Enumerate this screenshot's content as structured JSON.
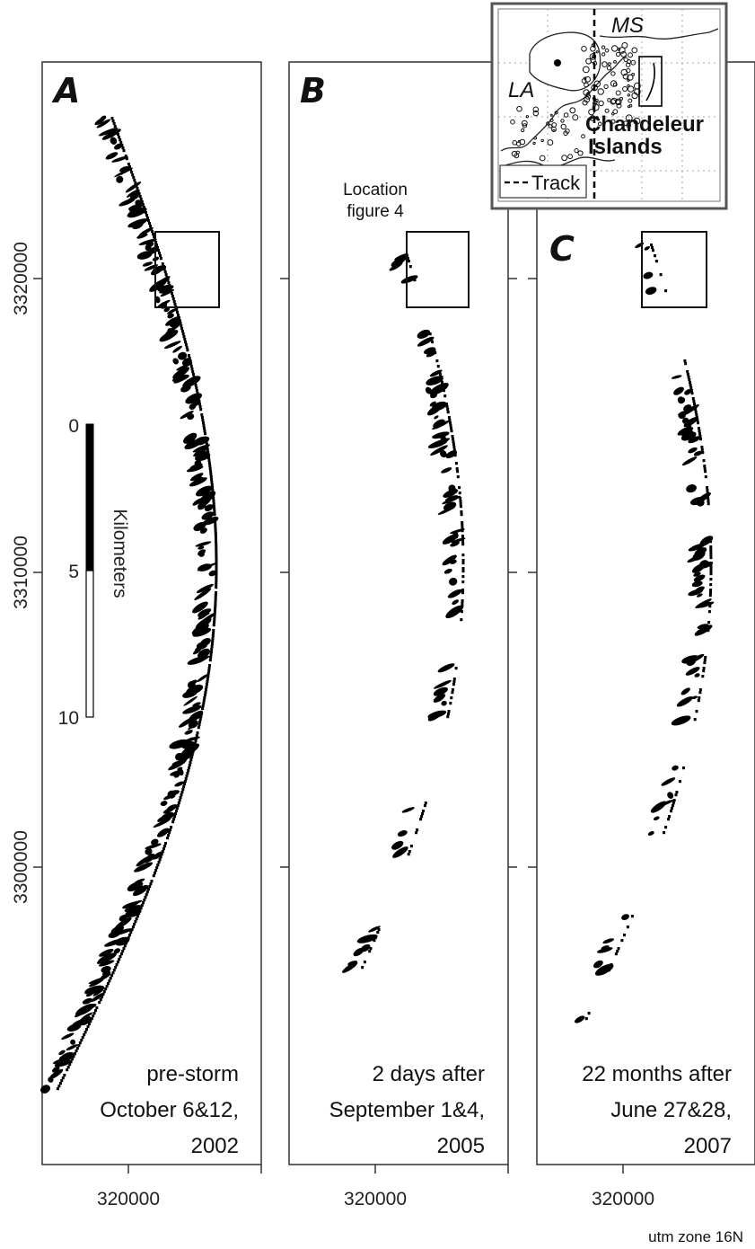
{
  "figure": {
    "panels": [
      {
        "letter": "A",
        "caption_lines": [
          "pre-storm",
          "October 6&12,",
          "2002"
        ]
      },
      {
        "letter": "B",
        "caption_lines": [
          "2 days after",
          "September 1&4,",
          "2005"
        ]
      },
      {
        "letter": "C",
        "caption_lines": [
          "22 months after",
          "June 27&28,",
          "2007"
        ]
      }
    ],
    "y_ticks": [
      "3320000",
      "3310000",
      "3300000"
    ],
    "x_tick": "320000",
    "location_label": [
      "Location",
      "figure 4"
    ],
    "scale_bar": {
      "label": "Kilometers",
      "ticks": [
        "0",
        "5",
        "10"
      ]
    },
    "projection_note": "utm zone 16N",
    "inset": {
      "state_labels": [
        "MS",
        "LA"
      ],
      "place_label": [
        "Chandeleur",
        "Islands"
      ],
      "legend_label": "Track"
    },
    "colors": {
      "ink": "#111111",
      "land": "#000000",
      "frame": "#333333",
      "inset_bg": "#ffffff",
      "inset_border": "#555555"
    }
  }
}
